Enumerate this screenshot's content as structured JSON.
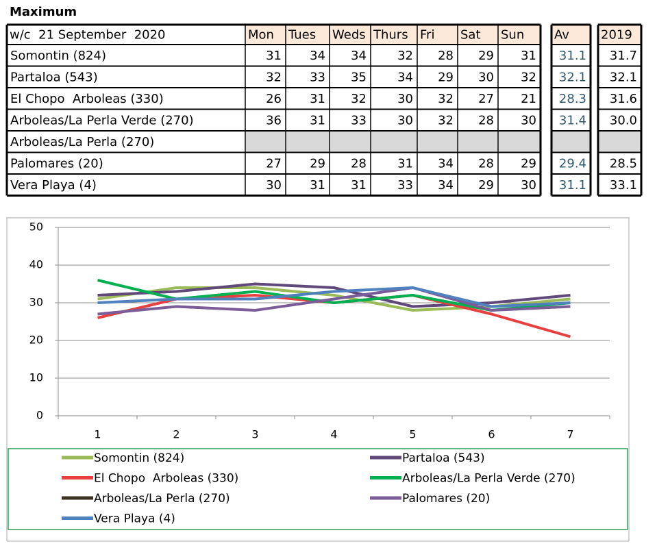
{
  "title": "Maximum",
  "table": {
    "header": [
      "w/c  21 September  2020",
      "Mon",
      "Tues",
      "Weds",
      "Thurs",
      "Fri",
      "Sat",
      "Sun",
      "Av",
      "2019"
    ],
    "rows": [
      [
        "Somontin (824)",
        31,
        34,
        34,
        32,
        28,
        29,
        31,
        31.1,
        31.7
      ],
      [
        "Partaloa (543)",
        32,
        33,
        35,
        34,
        29,
        30,
        32,
        32.1,
        32.1
      ],
      [
        "El Chopo  Arboleas (330)",
        26,
        31,
        32,
        30,
        32,
        27,
        21,
        28.3,
        31.6
      ],
      [
        "Arboleas/La Perla Verde (270)",
        36,
        31,
        33,
        30,
        32,
        28,
        30,
        31.4,
        "30.0"
      ],
      [
        "Arboleas/La Perla (270)",
        null,
        null,
        null,
        null,
        null,
        null,
        null,
        null,
        null
      ],
      [
        "Palomares (20)",
        27,
        29,
        28,
        31,
        34,
        28,
        29,
        29.4,
        28.5
      ],
      [
        "Vera Playa (4)",
        30,
        31,
        31,
        33,
        34,
        29,
        30,
        31.1,
        33.1
      ]
    ]
  },
  "chart_data": {
    "type": "line",
    "categories": [
      "1",
      "2",
      "3",
      "4",
      "5",
      "6",
      "7"
    ],
    "series": [
      {
        "name": "Somontin (824)",
        "color": "#9bbb59",
        "values": [
          31,
          34,
          34,
          32,
          28,
          29,
          31
        ]
      },
      {
        "name": "Partaloa (543)",
        "color": "#5f497a",
        "values": [
          32,
          33,
          35,
          34,
          29,
          30,
          32
        ]
      },
      {
        "name": "El Chopo  Arboleas (330)",
        "color": "#e84040",
        "values": [
          26,
          31,
          32,
          30,
          32,
          27,
          21
        ]
      },
      {
        "name": "Arboleas/La Perla Verde (270)",
        "color": "#00b050",
        "values": [
          36,
          31,
          33,
          30,
          32,
          28,
          30
        ]
      },
      {
        "name": "Arboleas/La Perla (270)",
        "color": "#3b3322",
        "values": [
          null,
          null,
          null,
          null,
          null,
          null,
          null
        ]
      },
      {
        "name": "Palomares (20)",
        "color": "#7a5c98",
        "values": [
          27,
          29,
          28,
          31,
          34,
          28,
          29
        ]
      },
      {
        "name": "Vera Playa (4)",
        "color": "#4f81bd",
        "values": [
          30,
          31,
          31,
          33,
          34,
          29,
          30
        ]
      }
    ],
    "ylim": [
      0,
      50
    ],
    "yticks": [
      0,
      10,
      20,
      30,
      40,
      50
    ],
    "grid": true
  }
}
